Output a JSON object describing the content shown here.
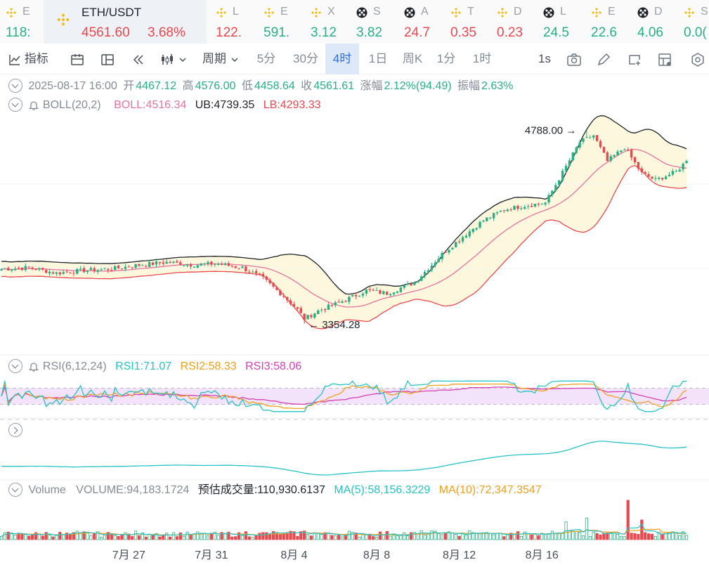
{
  "ticker_bar": {
    "items": [
      {
        "name": "E",
        "price": "118:",
        "dir": "up",
        "icon": "bnb-icon"
      },
      {
        "name": "L",
        "price": "122.",
        "dir": "dn",
        "icon": "bnb-icon"
      },
      {
        "name": "E",
        "price": "591.",
        "dir": "up",
        "icon": "bnb-icon"
      },
      {
        "name": "X",
        "price": "3.12",
        "dir": "up",
        "icon": "bnb-icon"
      },
      {
        "name": "S",
        "price": "3.82",
        "dir": "up",
        "icon": "grid-coin-icon"
      },
      {
        "name": "A",
        "price": "24.7",
        "dir": "dn",
        "icon": "grid-coin-icon"
      },
      {
        "name": "T",
        "price": "0.35",
        "dir": "dn",
        "icon": "bnb-icon"
      },
      {
        "name": "D",
        "price": "0.23",
        "dir": "dn",
        "icon": "bnb-icon"
      },
      {
        "name": "L",
        "price": "24.5",
        "dir": "up",
        "icon": "grid-coin-icon"
      },
      {
        "name": "E",
        "price": "22.6",
        "dir": "up",
        "icon": "bnb-icon"
      },
      {
        "name": "D",
        "price": "4.06",
        "dir": "up",
        "icon": "grid-coin-icon"
      },
      {
        "name": "S",
        "price": "0.0(",
        "dir": "up",
        "icon": "bnb-icon"
      }
    ],
    "active": {
      "symbol": "ETH/USDT",
      "price": "4561.60",
      "change": "3.68%",
      "icon": "bnb-icon"
    }
  },
  "toolbar": {
    "indicators": "指标",
    "period": "周期",
    "intervals": [
      "5分",
      "30分",
      "4时",
      "1日",
      "周K",
      "1分",
      "1时"
    ],
    "active_interval": "4时",
    "refresh": "1s"
  },
  "ohlc": {
    "datetime": "2025-08-17 16:00",
    "open_label": "开",
    "open": "4467.12",
    "high_label": "高",
    "high": "4576.00",
    "low_label": "低",
    "low": "4458.64",
    "close_label": "收",
    "close": "4561.61",
    "change_label": "涨幅",
    "change": "2.12%(94.49)",
    "amp_label": "振幅",
    "amp": "2.63%"
  },
  "boll": {
    "name": "BOLL(20,2)",
    "mid": "BOLL:4516.34",
    "ub": "UB:4739.35",
    "lb": "LB:4293.33"
  },
  "rsi": {
    "name": "RSI(6,12,24)",
    "rsi1": "RSI1:71.07",
    "rsi2": "RSI2:58.33",
    "rsi3": "RSI3:58.06"
  },
  "volume": {
    "name": "Volume",
    "vol": "VOLUME:94,183.1724",
    "est": "预估成交量:110,930.6137",
    "ma5": "MA(5):58,156.3229",
    "ma10": "MA(10):72,347.3547"
  },
  "chart_data": {
    "type": "candlestick",
    "interval": "4h",
    "x_tick_labels": [
      "7月 27",
      "7月 31",
      "8月 4",
      "8月 8",
      "8月 12",
      "8月 16"
    ],
    "annotations": {
      "max_label": "4788.00",
      "min_label": "3354.28",
      "max": 4788.0,
      "min": 3354.28
    },
    "price_anchors": [
      {
        "i": 0,
        "close": 3760
      },
      {
        "i": 8,
        "close": 3770
      },
      {
        "i": 16,
        "close": 3730
      },
      {
        "i": 24,
        "close": 3750
      },
      {
        "i": 32,
        "close": 3760
      },
      {
        "i": 40,
        "close": 3790
      },
      {
        "i": 48,
        "close": 3810
      },
      {
        "i": 56,
        "close": 3790
      },
      {
        "i": 62,
        "close": 3800
      },
      {
        "i": 70,
        "close": 3770
      },
      {
        "i": 76,
        "close": 3690
      },
      {
        "i": 82,
        "close": 3560
      },
      {
        "i": 86,
        "close": 3460
      },
      {
        "i": 88,
        "close": 3390
      },
      {
        "i": 92,
        "close": 3450
      },
      {
        "i": 98,
        "close": 3510
      },
      {
        "i": 106,
        "close": 3600
      },
      {
        "i": 112,
        "close": 3580
      },
      {
        "i": 120,
        "close": 3660
      },
      {
        "i": 128,
        "close": 3870
      },
      {
        "i": 134,
        "close": 4000
      },
      {
        "i": 140,
        "close": 4120
      },
      {
        "i": 146,
        "close": 4200
      },
      {
        "i": 152,
        "close": 4230
      },
      {
        "i": 158,
        "close": 4250
      },
      {
        "i": 162,
        "close": 4430
      },
      {
        "i": 168,
        "close": 4700
      },
      {
        "i": 172,
        "close": 4750
      },
      {
        "i": 176,
        "close": 4560
      },
      {
        "i": 181,
        "close": 4660
      },
      {
        "i": 186,
        "close": 4470
      },
      {
        "i": 190,
        "close": 4420
      },
      {
        "i": 196,
        "close": 4480
      },
      {
        "i": 199,
        "close": 4561.61
      }
    ],
    "candle_count": 200,
    "y_range": [
      3150,
      4900
    ],
    "rsi_range": [
      0,
      100
    ],
    "rsi_band": [
      30,
      70
    ],
    "volume_spikes": [
      {
        "i": 182,
        "rel": 1.0
      },
      {
        "i": 170,
        "rel": 0.55
      },
      {
        "i": 186,
        "rel": 0.5
      },
      {
        "i": 164,
        "rel": 0.45
      }
    ]
  },
  "colors": {
    "up": "#27b083",
    "down": "#e8494f",
    "boll_mid": "#e8739d",
    "boll_ub": "#1e2329",
    "boll_lb": "#e8494f",
    "boll_fill": "#fdf7dd",
    "rsi1": "#27c2c6",
    "rsi2": "#f0a01e",
    "rsi3": "#d63fb5",
    "rsi_band": "#f2e3fb",
    "macd_line": "#27c2c6",
    "ma5": "#27c2c6",
    "ma10": "#f0a01e"
  }
}
